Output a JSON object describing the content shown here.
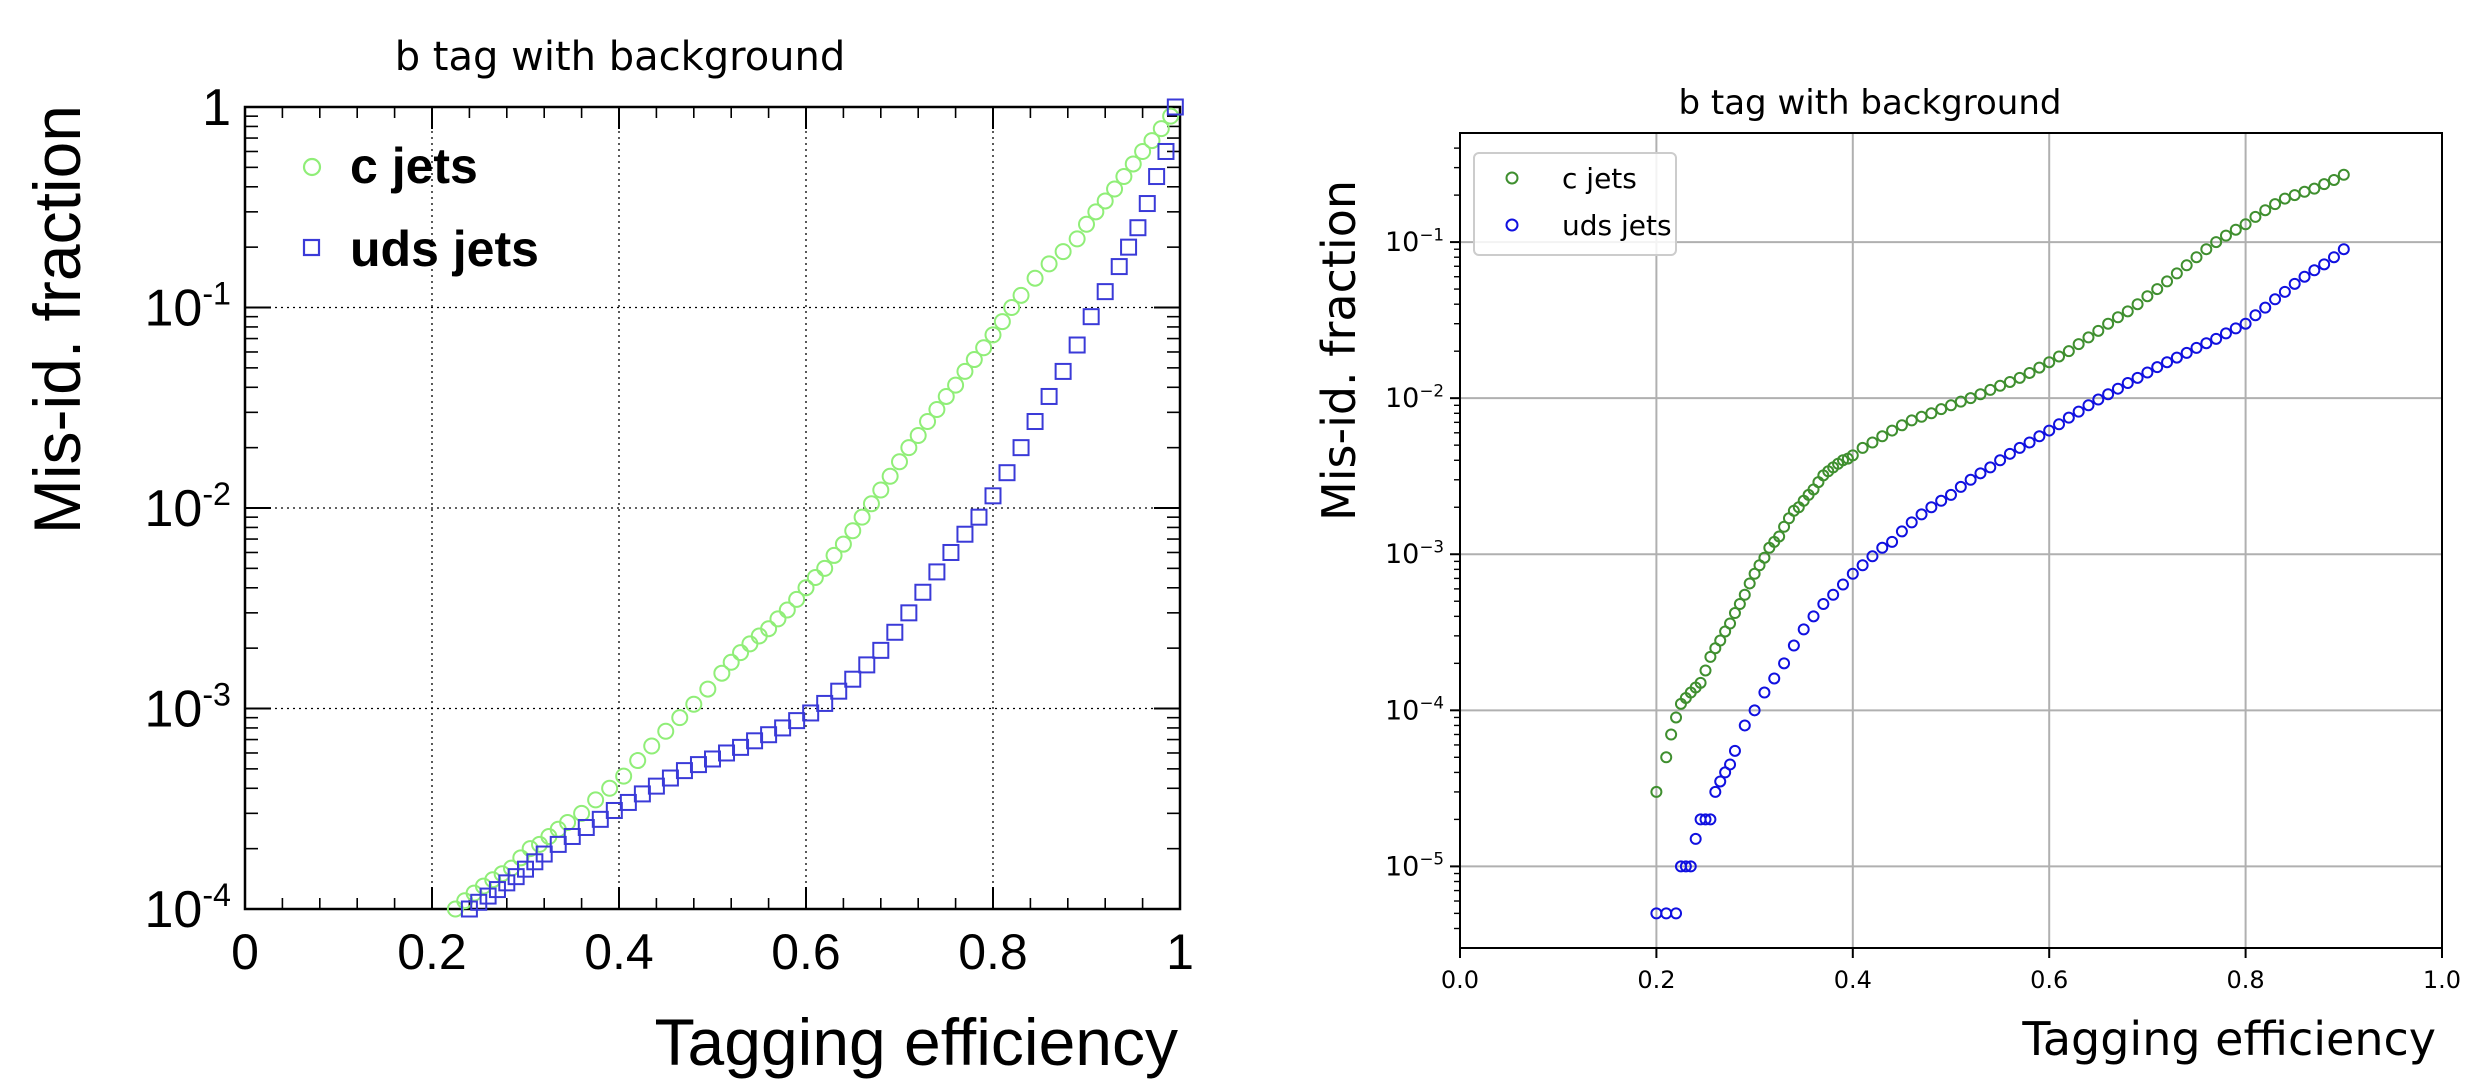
{
  "chart_data": [
    {
      "type": "scatter",
      "title": "b tag with background",
      "xlabel": "Tagging efficiency",
      "ylabel": "Mis-id. fraction",
      "xlim": [
        0,
        1
      ],
      "ylim": [
        0.0001,
        1
      ],
      "yscale": "log",
      "grid": true,
      "legend_position": "top-left",
      "x_tick_labels": [
        "0",
        "0.2",
        "0.4",
        "0.6",
        "0.8",
        "1"
      ],
      "y_tick_labels": [
        {
          "base": "10",
          "exp": "-4"
        },
        {
          "base": "10",
          "exp": "-3"
        },
        {
          "base": "10",
          "exp": "-2"
        },
        {
          "base": "10",
          "exp": "-1"
        },
        {
          "base": "1",
          "exp": ""
        }
      ],
      "series": [
        {
          "name": "c jets",
          "color": "#90ee78",
          "marker": "circle",
          "x": [
            0.225,
            0.235,
            0.245,
            0.255,
            0.265,
            0.275,
            0.285,
            0.295,
            0.305,
            0.315,
            0.325,
            0.335,
            0.345,
            0.36,
            0.375,
            0.39,
            0.405,
            0.42,
            0.435,
            0.45,
            0.465,
            0.48,
            0.495,
            0.51,
            0.52,
            0.53,
            0.54,
            0.55,
            0.56,
            0.57,
            0.58,
            0.59,
            0.6,
            0.61,
            0.62,
            0.63,
            0.64,
            0.65,
            0.66,
            0.67,
            0.68,
            0.69,
            0.7,
            0.71,
            0.72,
            0.73,
            0.74,
            0.75,
            0.76,
            0.77,
            0.78,
            0.79,
            0.8,
            0.81,
            0.82,
            0.83,
            0.845,
            0.86,
            0.875,
            0.89,
            0.9,
            0.91,
            0.92,
            0.93,
            0.94,
            0.95,
            0.96,
            0.97,
            0.98,
            0.99
          ],
          "y": [
            0.0001,
            0.00011,
            0.00012,
            0.00013,
            0.00014,
            0.00015,
            0.00016,
            0.00018,
            0.0002,
            0.00021,
            0.00023,
            0.00025,
            0.00027,
            0.0003,
            0.00035,
            0.0004,
            0.00046,
            0.00055,
            0.00065,
            0.00077,
            0.0009,
            0.00105,
            0.00125,
            0.0015,
            0.0017,
            0.0019,
            0.0021,
            0.0023,
            0.0025,
            0.0028,
            0.0031,
            0.0035,
            0.004,
            0.0045,
            0.005,
            0.0058,
            0.0066,
            0.0077,
            0.009,
            0.0105,
            0.0123,
            0.0144,
            0.017,
            0.02,
            0.023,
            0.027,
            0.031,
            0.036,
            0.041,
            0.048,
            0.055,
            0.063,
            0.073,
            0.085,
            0.1,
            0.115,
            0.14,
            0.165,
            0.19,
            0.22,
            0.26,
            0.3,
            0.34,
            0.39,
            0.45,
            0.52,
            0.6,
            0.68,
            0.78,
            0.9
          ]
        },
        {
          "name": "uds jets",
          "color": "#3a3ad8",
          "marker": "square",
          "x": [
            0.24,
            0.25,
            0.26,
            0.27,
            0.28,
            0.29,
            0.3,
            0.31,
            0.32,
            0.335,
            0.35,
            0.365,
            0.38,
            0.395,
            0.41,
            0.425,
            0.44,
            0.455,
            0.47,
            0.485,
            0.5,
            0.515,
            0.53,
            0.545,
            0.56,
            0.575,
            0.59,
            0.605,
            0.62,
            0.635,
            0.65,
            0.665,
            0.68,
            0.695,
            0.71,
            0.725,
            0.74,
            0.755,
            0.77,
            0.785,
            0.8,
            0.815,
            0.83,
            0.845,
            0.86,
            0.875,
            0.89,
            0.905,
            0.92,
            0.935,
            0.945,
            0.955,
            0.965,
            0.975,
            0.985,
            0.995
          ],
          "y": [
            0.0001,
            0.000108,
            0.000116,
            0.000125,
            0.000135,
            0.000145,
            0.000158,
            0.000172,
            0.000188,
            0.00021,
            0.00023,
            0.000255,
            0.00028,
            0.00031,
            0.00034,
            0.000375,
            0.00041,
            0.00045,
            0.00049,
            0.000525,
            0.00056,
            0.0006,
            0.00064,
            0.00069,
            0.00074,
            0.0008,
            0.00087,
            0.00095,
            0.00106,
            0.00122,
            0.0014,
            0.00165,
            0.00195,
            0.0024,
            0.003,
            0.0038,
            0.0048,
            0.006,
            0.0074,
            0.009,
            0.0115,
            0.015,
            0.02,
            0.027,
            0.036,
            0.048,
            0.065,
            0.09,
            0.12,
            0.16,
            0.2,
            0.25,
            0.33,
            0.45,
            0.6,
            1.0
          ]
        }
      ]
    },
    {
      "type": "scatter",
      "title": "b tag with background",
      "xlabel": "Tagging efficiency",
      "ylabel": "Mis-id. fraction",
      "xlim": [
        0,
        1
      ],
      "ylim": [
        3e-06,
        0.5
      ],
      "yscale": "log",
      "grid": true,
      "legend_position": "top-left",
      "x_tick_labels": [
        "0.0",
        "0.2",
        "0.4",
        "0.6",
        "0.8",
        "1.0"
      ],
      "y_tick_labels": [
        {
          "base": "10",
          "exp": "−5"
        },
        {
          "base": "10",
          "exp": "−4"
        },
        {
          "base": "10",
          "exp": "−3"
        },
        {
          "base": "10",
          "exp": "−2"
        },
        {
          "base": "10",
          "exp": "−1"
        }
      ],
      "series": [
        {
          "name": "c jets",
          "color": "#3f8f2f",
          "marker": "circle",
          "x": [
            0.2,
            0.21,
            0.215,
            0.22,
            0.225,
            0.23,
            0.235,
            0.24,
            0.245,
            0.25,
            0.255,
            0.26,
            0.265,
            0.27,
            0.275,
            0.28,
            0.285,
            0.29,
            0.295,
            0.3,
            0.305,
            0.31,
            0.315,
            0.32,
            0.325,
            0.33,
            0.335,
            0.34,
            0.345,
            0.35,
            0.355,
            0.36,
            0.365,
            0.37,
            0.375,
            0.38,
            0.385,
            0.39,
            0.395,
            0.4,
            0.41,
            0.42,
            0.43,
            0.44,
            0.45,
            0.46,
            0.47,
            0.48,
            0.49,
            0.5,
            0.51,
            0.52,
            0.53,
            0.54,
            0.55,
            0.56,
            0.57,
            0.58,
            0.59,
            0.6,
            0.61,
            0.62,
            0.63,
            0.64,
            0.65,
            0.66,
            0.67,
            0.68,
            0.69,
            0.7,
            0.71,
            0.72,
            0.73,
            0.74,
            0.75,
            0.76,
            0.77,
            0.78,
            0.79,
            0.8,
            0.81,
            0.82,
            0.83,
            0.84,
            0.85,
            0.86,
            0.87,
            0.88,
            0.89,
            0.9
          ],
          "y": [
            3e-05,
            5e-05,
            7e-05,
            9e-05,
            0.00011,
            0.00012,
            0.00013,
            0.00014,
            0.00015,
            0.00018,
            0.00022,
            0.00025,
            0.00028,
            0.00032,
            0.00036,
            0.00042,
            0.00048,
            0.00055,
            0.00065,
            0.00075,
            0.00085,
            0.00095,
            0.0011,
            0.0012,
            0.0013,
            0.0015,
            0.0017,
            0.0019,
            0.002,
            0.0022,
            0.0024,
            0.0026,
            0.0029,
            0.0032,
            0.0034,
            0.0036,
            0.0038,
            0.004,
            0.0041,
            0.0043,
            0.0048,
            0.0052,
            0.0057,
            0.0062,
            0.0067,
            0.0072,
            0.0076,
            0.008,
            0.0085,
            0.009,
            0.0095,
            0.01,
            0.0106,
            0.0113,
            0.012,
            0.0127,
            0.0135,
            0.0145,
            0.0157,
            0.017,
            0.0185,
            0.02,
            0.0222,
            0.0245,
            0.027,
            0.03,
            0.033,
            0.036,
            0.04,
            0.045,
            0.05,
            0.056,
            0.063,
            0.071,
            0.08,
            0.09,
            0.1,
            0.11,
            0.12,
            0.13,
            0.145,
            0.16,
            0.175,
            0.19,
            0.2,
            0.21,
            0.22,
            0.235,
            0.25,
            0.27
          ]
        },
        {
          "name": "uds jets",
          "color": "#1010e0",
          "marker": "circle",
          "x": [
            0.2,
            0.21,
            0.22,
            0.225,
            0.23,
            0.235,
            0.24,
            0.245,
            0.25,
            0.255,
            0.26,
            0.265,
            0.27,
            0.275,
            0.28,
            0.29,
            0.3,
            0.31,
            0.32,
            0.33,
            0.34,
            0.35,
            0.36,
            0.37,
            0.38,
            0.39,
            0.4,
            0.41,
            0.42,
            0.43,
            0.44,
            0.45,
            0.46,
            0.47,
            0.48,
            0.49,
            0.5,
            0.51,
            0.52,
            0.53,
            0.54,
            0.55,
            0.56,
            0.57,
            0.58,
            0.59,
            0.6,
            0.61,
            0.62,
            0.63,
            0.64,
            0.65,
            0.66,
            0.67,
            0.68,
            0.69,
            0.7,
            0.71,
            0.72,
            0.73,
            0.74,
            0.75,
            0.76,
            0.77,
            0.78,
            0.79,
            0.8,
            0.81,
            0.82,
            0.83,
            0.84,
            0.85,
            0.86,
            0.87,
            0.88,
            0.89,
            0.9
          ],
          "y": [
            5e-06,
            5e-06,
            5e-06,
            1e-05,
            1e-05,
            1e-05,
            1.5e-05,
            2e-05,
            2e-05,
            2e-05,
            3e-05,
            3.5e-05,
            4e-05,
            4.5e-05,
            5.5e-05,
            8e-05,
            0.0001,
            0.00013,
            0.00016,
            0.0002,
            0.00026,
            0.00033,
            0.0004,
            0.00048,
            0.00055,
            0.00064,
            0.00075,
            0.00085,
            0.00097,
            0.0011,
            0.0012,
            0.0014,
            0.0016,
            0.0018,
            0.002,
            0.0022,
            0.0024,
            0.0027,
            0.003,
            0.0033,
            0.0036,
            0.004,
            0.0044,
            0.0048,
            0.0052,
            0.0057,
            0.0062,
            0.0068,
            0.0075,
            0.0082,
            0.009,
            0.0098,
            0.0106,
            0.0115,
            0.0125,
            0.0135,
            0.0146,
            0.0158,
            0.017,
            0.0182,
            0.0195,
            0.021,
            0.0225,
            0.024,
            0.026,
            0.028,
            0.03,
            0.034,
            0.038,
            0.043,
            0.048,
            0.054,
            0.06,
            0.066,
            0.072,
            0.08,
            0.09
          ]
        }
      ]
    }
  ]
}
